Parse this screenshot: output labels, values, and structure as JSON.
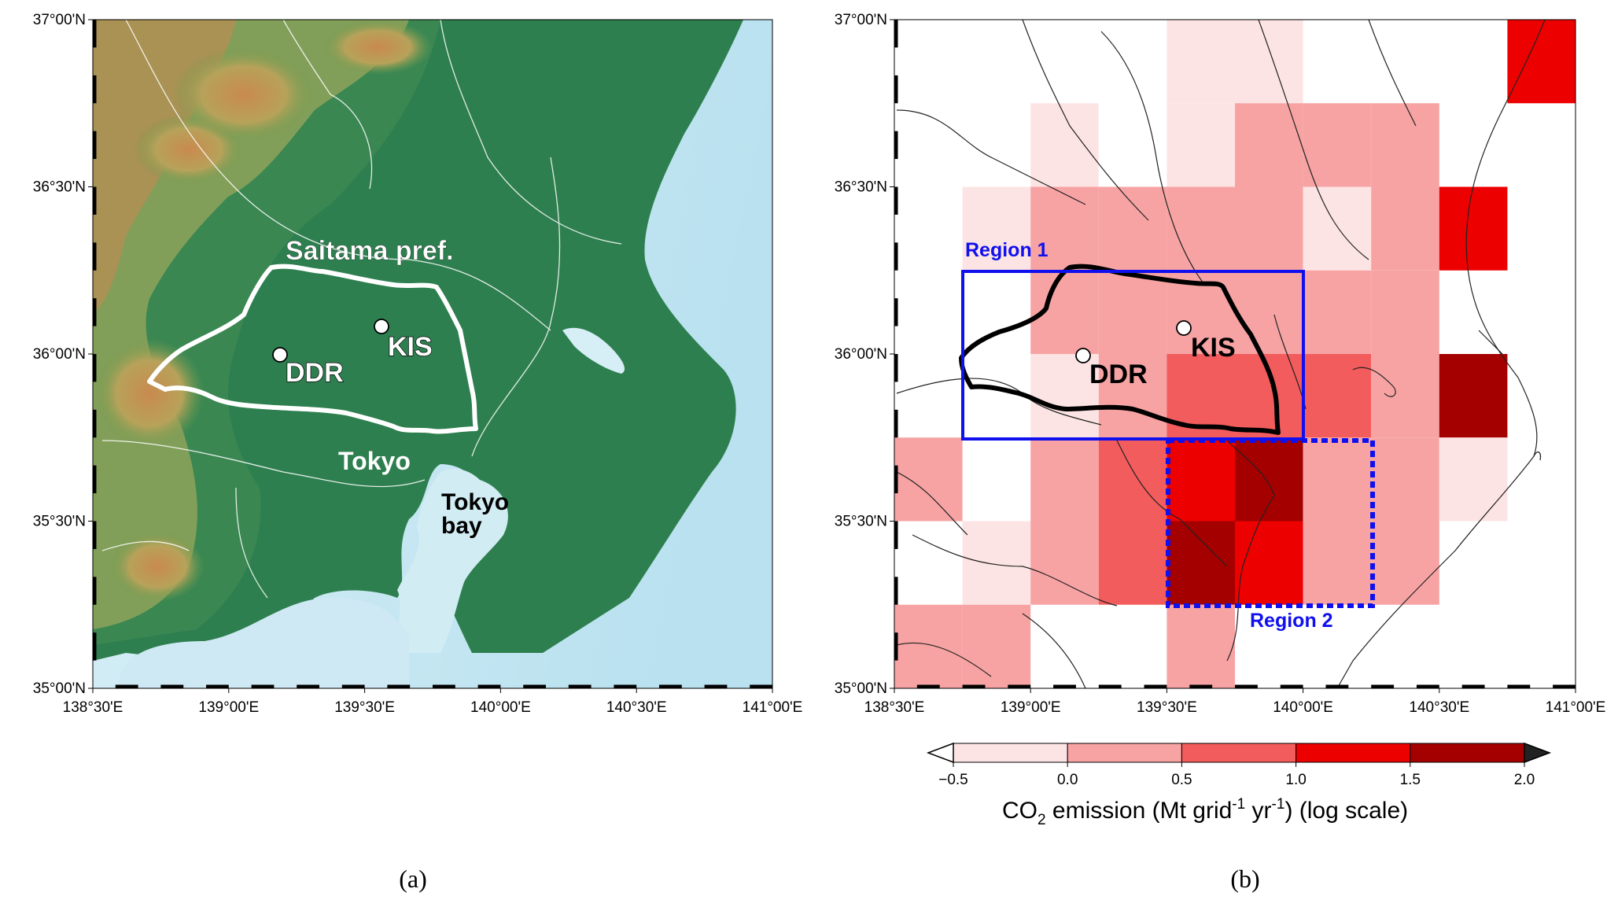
{
  "panel_a": {
    "caption": "(a)",
    "labels": {
      "saitama": "Saitama pref.",
      "tokyo": "Tokyo",
      "tokyo_bay_1": "Tokyo",
      "tokyo_bay_2": "bay",
      "ddr": "DDR",
      "kis": "KIS"
    }
  },
  "panel_b": {
    "caption": "(b)",
    "labels": {
      "region1": "Region 1",
      "region2": "Region 2",
      "ddr": "DDR",
      "kis": "KIS"
    }
  },
  "axes": {
    "lat_ticks": [
      "37°00'N",
      "36°30'N",
      "36°00'N",
      "35°30'N",
      "35°00'N"
    ],
    "lon_ticks": [
      "138°30'E",
      "139°00'E",
      "139°30'E",
      "140°00'E",
      "140°30'E",
      "141°00'E"
    ],
    "lat_range": [
      35.0,
      37.0
    ],
    "lon_range": [
      138.5,
      141.0
    ]
  },
  "colorbar": {
    "ticks": [
      "−0.5",
      "0.0",
      "0.5",
      "1.0",
      "1.5",
      "2.0"
    ],
    "title_pre": "CO",
    "title_sub": "2",
    "title_mid": " emission (Mt grid",
    "title_sup1": "-1",
    "title_mid2": " yr",
    "title_sup2": "-1",
    "title_post": ") (log scale)",
    "colors": [
      "#fde4e4",
      "#f7a3a3",
      "#f35c5c",
      "#ed0000",
      "#a50000"
    ]
  },
  "chart_data": {
    "type": "heatmap",
    "title": "CO2 emission (Mt grid-1 yr-1) (log scale)",
    "cell_size_deg": 0.25,
    "lon_edges": [
      138.5,
      138.75,
      139.0,
      139.25,
      139.5,
      139.75,
      140.0,
      140.25,
      140.5,
      140.75,
      141.0
    ],
    "lat_edges_top_to_bottom": [
      37.0,
      36.75,
      36.5,
      36.25,
      36.0,
      35.75,
      35.5,
      35.25,
      35.0
    ],
    "levels": [
      -0.5,
      0.0,
      0.5,
      1.0,
      1.5,
      2.0
    ],
    "class_index_grid_note": "-1 = no data (white); 0: -0.5..0.0, 1: 0.0..0.5, 2: 0.5..1.0, 3: 1.0..1.5, 4: 1.5..2.0",
    "class_index_grid": [
      [
        -1,
        -1,
        -1,
        -1,
        0,
        0,
        -1,
        -1,
        -1,
        3
      ],
      [
        -1,
        -1,
        0,
        -1,
        0,
        1,
        1,
        1,
        -1,
        -1
      ],
      [
        -1,
        0,
        1,
        1,
        1,
        1,
        0,
        1,
        3,
        -1
      ],
      [
        -1,
        -1,
        1,
        1,
        1,
        1,
        1,
        1,
        -1,
        -1
      ],
      [
        -1,
        -1,
        0,
        1,
        2,
        2,
        2,
        1,
        4,
        -1
      ],
      [
        1,
        -1,
        1,
        2,
        3,
        4,
        1,
        1,
        0,
        -1
      ],
      [
        -1,
        0,
        1,
        2,
        4,
        3,
        1,
        1,
        -1,
        -1
      ],
      [
        1,
        1,
        -1,
        -1,
        1,
        -1,
        -1,
        -1,
        -1,
        -1
      ]
    ],
    "sites": [
      {
        "name": "DDR",
        "lon": 139.1,
        "lat": 36.0
      },
      {
        "name": "KIS",
        "lon": 139.55,
        "lat": 36.08
      }
    ],
    "regions": [
      {
        "name": "Region 1",
        "lon": [
          138.75,
          140.0
        ],
        "lat": [
          35.75,
          36.25
        ]
      },
      {
        "name": "Region 2",
        "lon": [
          139.5,
          140.25
        ],
        "lat": [
          35.25,
          35.75
        ]
      }
    ]
  }
}
